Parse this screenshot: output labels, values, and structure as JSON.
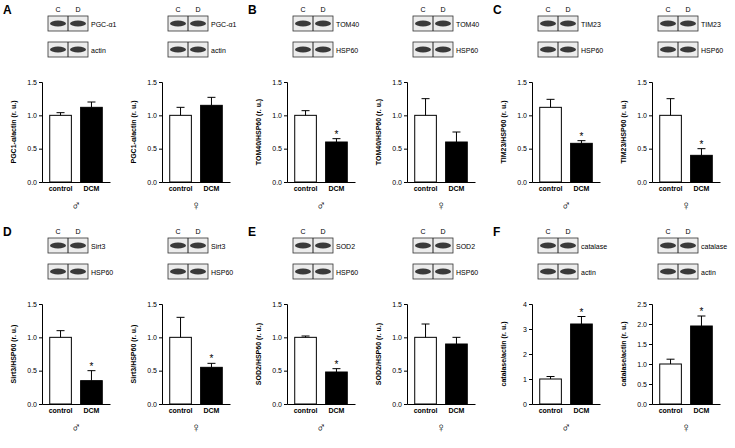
{
  "chart_data": [
    {
      "type": "bar",
      "panel": "A",
      "xlabel": "♂",
      "ylabel": "PGC1-α/actin (r. u.)",
      "blot": {
        "lanes": [
          "C",
          "D"
        ],
        "proteins": [
          "PGC-α1",
          "actin"
        ]
      },
      "categories": [
        "control",
        "DCM"
      ],
      "values": [
        1.0,
        1.12
      ],
      "error": [
        0.04,
        0.08
      ],
      "stars": [
        null,
        null
      ],
      "colors": [
        "#ffffff",
        "#000000"
      ],
      "ylim": [
        0,
        1.5
      ],
      "yticks": [
        {
          "value": 0,
          "label": "0.0"
        },
        0.5,
        {
          "value": 1,
          "label": "1.0"
        },
        1.5
      ]
    },
    {
      "type": "bar",
      "xlabel": "♀",
      "ylabel": "PGC1-α/actin (r. u.)",
      "blot": {
        "lanes": [
          "C",
          "D"
        ],
        "proteins": [
          "PGC-α1",
          "actin"
        ]
      },
      "categories": [
        "control",
        "DCM"
      ],
      "values": [
        1.0,
        1.15
      ],
      "error": [
        0.12,
        0.12
      ],
      "stars": [
        null,
        null
      ],
      "colors": [
        "#ffffff",
        "#000000"
      ],
      "ylim": [
        0,
        1.5
      ],
      "yticks": [
        {
          "value": 0,
          "label": "0.0"
        },
        0.5,
        {
          "value": 1,
          "label": "1.0"
        },
        1.5
      ]
    },
    {
      "type": "bar",
      "panel": "B",
      "xlabel": "♂",
      "ylabel": "TOM40/HSP60 (r. u.)",
      "blot": {
        "lanes": [
          "C",
          "D"
        ],
        "proteins": [
          "TOM40",
          "HSP60"
        ]
      },
      "categories": [
        "control",
        "DCM"
      ],
      "values": [
        1.0,
        0.6
      ],
      "error": [
        0.07,
        0.05
      ],
      "stars": [
        null,
        "*"
      ],
      "colors": [
        "#ffffff",
        "#000000"
      ],
      "ylim": [
        0,
        1.5
      ],
      "yticks": [
        {
          "value": 0,
          "label": "0.0"
        },
        0.5,
        {
          "value": 1,
          "label": "1.0"
        },
        1.5
      ]
    },
    {
      "type": "bar",
      "xlabel": "♀",
      "ylabel": "TOM40/HSP60 (r. u.)",
      "blot": {
        "lanes": [
          "C",
          "D"
        ],
        "proteins": [
          "TOM40",
          "HSP60"
        ]
      },
      "categories": [
        "control",
        "DCM"
      ],
      "values": [
        1.0,
        0.6
      ],
      "error": [
        0.25,
        0.15
      ],
      "stars": [
        null,
        null
      ],
      "colors": [
        "#ffffff",
        "#000000"
      ],
      "ylim": [
        0,
        1.5
      ],
      "yticks": [
        {
          "value": 0,
          "label": "0.0"
        },
        0.5,
        {
          "value": 1,
          "label": "1.0"
        },
        1.5
      ]
    },
    {
      "type": "bar",
      "panel": "C",
      "xlabel": "♂",
      "ylabel": "TIM23/HSP60 (r. u.)",
      "blot": {
        "lanes": [
          "C",
          "D"
        ],
        "proteins": [
          "TIM23",
          "HSP60"
        ]
      },
      "categories": [
        "control",
        "DCM"
      ],
      "values": [
        1.12,
        0.58
      ],
      "error": [
        0.12,
        0.04
      ],
      "stars": [
        null,
        "*"
      ],
      "colors": [
        "#ffffff",
        "#000000"
      ],
      "ylim": [
        0,
        1.5
      ],
      "yticks": [
        {
          "value": 0,
          "label": "0.0"
        },
        0.5,
        {
          "value": 1,
          "label": "1.0"
        },
        1.5
      ]
    },
    {
      "type": "bar",
      "xlabel": "♀",
      "ylabel": "TIM23/HSP60 (r. u.)",
      "blot": {
        "lanes": [
          "C",
          "D"
        ],
        "proteins": [
          "TIM23",
          "HSP60"
        ]
      },
      "categories": [
        "control",
        "DCM"
      ],
      "values": [
        1.0,
        0.4
      ],
      "error": [
        0.25,
        0.1
      ],
      "stars": [
        null,
        "*"
      ],
      "colors": [
        "#ffffff",
        "#000000"
      ],
      "ylim": [
        0,
        1.5
      ],
      "yticks": [
        {
          "value": 0,
          "label": "0.0"
        },
        0.5,
        {
          "value": 1,
          "label": "1.0"
        },
        1.5
      ]
    },
    {
      "type": "bar",
      "panel": "D",
      "xlabel": "♂",
      "ylabel": "Sirt3/HSP60 (r. u.)",
      "blot": {
        "lanes": [
          "C",
          "D"
        ],
        "proteins": [
          "Sirt3",
          "HSP60"
        ]
      },
      "categories": [
        "control",
        "DCM"
      ],
      "values": [
        1.0,
        0.35
      ],
      "error": [
        0.1,
        0.15
      ],
      "stars": [
        null,
        "*"
      ],
      "colors": [
        "#ffffff",
        "#000000"
      ],
      "ylim": [
        0,
        1.5
      ],
      "yticks": [
        {
          "value": 0,
          "label": "0.0"
        },
        0.5,
        {
          "value": 1,
          "label": "1.0"
        },
        1.5
      ]
    },
    {
      "type": "bar",
      "xlabel": "♀",
      "ylabel": "Sirt3/HSP60 (r. u.)",
      "blot": {
        "lanes": [
          "C",
          "D"
        ],
        "proteins": [
          "Sirt3",
          "HSP60"
        ]
      },
      "categories": [
        "control",
        "DCM"
      ],
      "values": [
        1.0,
        0.55
      ],
      "error": [
        0.3,
        0.06
      ],
      "stars": [
        null,
        "*"
      ],
      "colors": [
        "#ffffff",
        "#000000"
      ],
      "ylim": [
        0,
        1.5
      ],
      "yticks": [
        {
          "value": 0,
          "label": "0.0"
        },
        0.5,
        {
          "value": 1,
          "label": "1.0"
        },
        1.5
      ]
    },
    {
      "type": "bar",
      "panel": "E",
      "xlabel": "♂",
      "ylabel": "SOD2/HSP60 (r. u.)",
      "blot": {
        "lanes": [
          "C",
          "D"
        ],
        "proteins": [
          "SOD2",
          "HSP60"
        ]
      },
      "categories": [
        "control",
        "DCM"
      ],
      "values": [
        1.0,
        0.48
      ],
      "error": [
        0.02,
        0.05
      ],
      "stars": [
        null,
        "*"
      ],
      "colors": [
        "#ffffff",
        "#000000"
      ],
      "ylim": [
        0,
        1.5
      ],
      "yticks": [
        {
          "value": 0,
          "label": "0.0"
        },
        0.5,
        {
          "value": 1,
          "label": "1.0"
        },
        1.5
      ]
    },
    {
      "type": "bar",
      "xlabel": "♀",
      "ylabel": "SOD2/HSP60 (r. u.)",
      "blot": {
        "lanes": [
          "C",
          "D"
        ],
        "proteins": [
          "SOD2",
          "HSP60"
        ]
      },
      "categories": [
        "control",
        "DCM"
      ],
      "values": [
        1.0,
        0.9
      ],
      "error": [
        0.2,
        0.1
      ],
      "stars": [
        null,
        null
      ],
      "colors": [
        "#ffffff",
        "#000000"
      ],
      "ylim": [
        0,
        1.5
      ],
      "yticks": [
        {
          "value": 0,
          "label": "0.0"
        },
        0.5,
        {
          "value": 1,
          "label": "1.0"
        },
        1.5
      ]
    },
    {
      "type": "bar",
      "panel": "F",
      "xlabel": "♂",
      "ylabel": "catalase/actin (r. u.)",
      "blot": {
        "lanes": [
          "C",
          "D"
        ],
        "proteins": [
          "catalase",
          "actin"
        ]
      },
      "categories": [
        "control",
        "DCM"
      ],
      "values": [
        1.0,
        3.2
      ],
      "error": [
        0.1,
        0.3
      ],
      "stars": [
        null,
        "*"
      ],
      "colors": [
        "#ffffff",
        "#000000"
      ],
      "ylim": [
        0,
        4
      ],
      "yticks": [
        0,
        1,
        2,
        3,
        4
      ]
    },
    {
      "type": "bar",
      "xlabel": "♀",
      "ylabel": "catalase/actin (r. u.)",
      "blot": {
        "lanes": [
          "C",
          "D"
        ],
        "proteins": [
          "catalase",
          "actin"
        ]
      },
      "categories": [
        "control",
        "DCM"
      ],
      "values": [
        1.0,
        1.95
      ],
      "error": [
        0.12,
        0.25
      ],
      "stars": [
        null,
        "*"
      ],
      "colors": [
        "#ffffff",
        "#000000"
      ],
      "ylim": [
        0,
        2.5
      ],
      "yticks": [
        {
          "value": 0,
          "label": "0.0"
        },
        0.5,
        {
          "value": 1,
          "label": "1.0"
        },
        1.5,
        {
          "value": 2,
          "label": "2.0"
        },
        2.5
      ]
    }
  ]
}
